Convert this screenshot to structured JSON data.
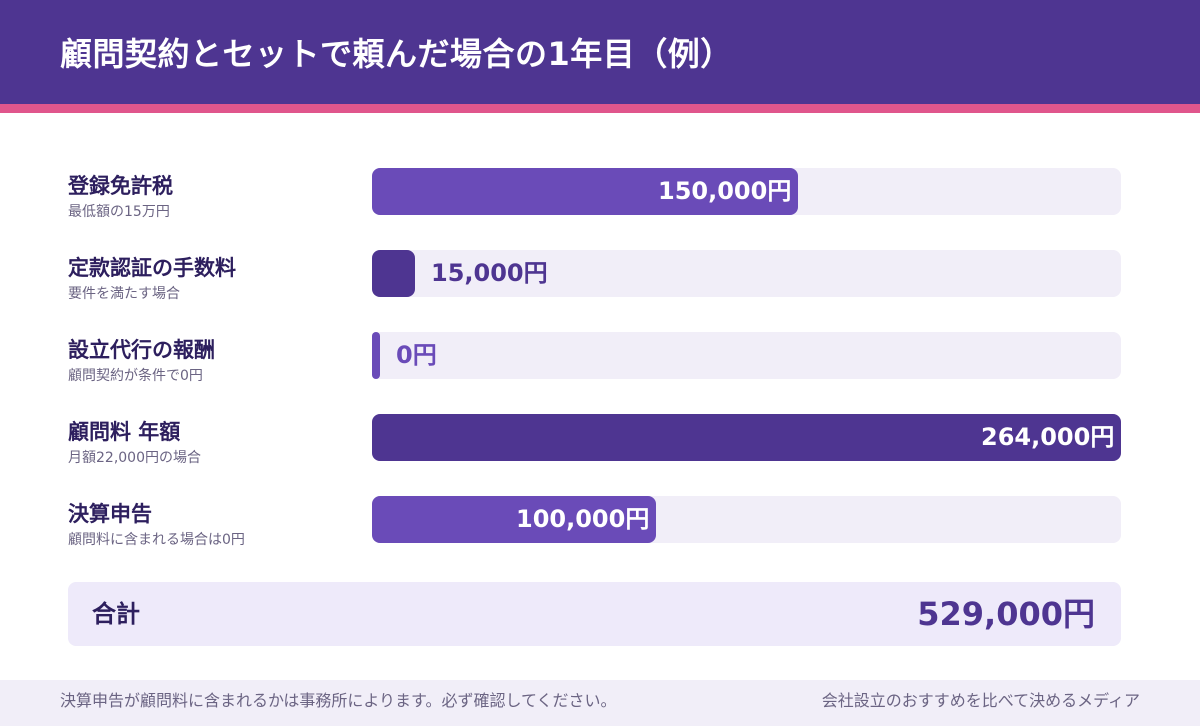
{
  "page": {
    "title": "顧問契約とセットで頼んだ場合の1年目（例）"
  },
  "chart_data": {
    "type": "bar",
    "orientation": "horizontal",
    "unit": "円",
    "xlim": [
      0,
      264000
    ],
    "items": [
      {
        "label": "登録免許税",
        "note": "最低額の15万円",
        "value": 150000,
        "value_text": "150,000円",
        "color": "#6a4bb8"
      },
      {
        "label": "定款認証の手数料",
        "note": "要件を満たす場合",
        "value": 15000,
        "value_text": "15,000円",
        "color": "#4e3591"
      },
      {
        "label": "設立代行の報酬",
        "note": "顧問契約が条件で0円",
        "value": 0,
        "value_text": "0円",
        "color": "#6a4bb8"
      },
      {
        "label": "顧問料 年額",
        "note": "月額22,000円の場合",
        "value": 264000,
        "value_text": "264,000円",
        "color": "#4e3591"
      },
      {
        "label": "決算申告",
        "note": "顧問料に含まれる場合は0円",
        "value": 100000,
        "value_text": "100,000円",
        "color": "#6a4bb8"
      }
    ],
    "total": {
      "label": "合計",
      "value": 529000,
      "value_text": "529,000円"
    }
  },
  "footer": {
    "note": "決算申告が顧問料に含まれるかは事務所によります。必ず確認してください。",
    "brand": "会社設立のおすすめを比べて決めるメディア"
  },
  "colors": {
    "header_bg": "#4e3591",
    "accent": "#e0568c",
    "track": "#f1eef8",
    "bar_primary": "#6a4bb8",
    "bar_dark": "#4e3591"
  }
}
